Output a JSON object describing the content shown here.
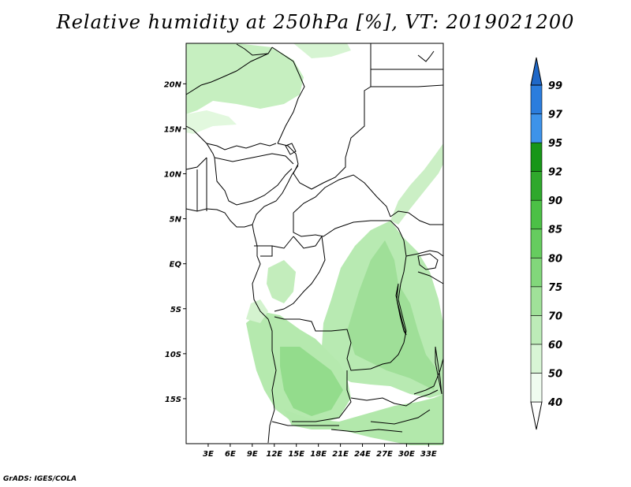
{
  "title": "Relative humidity at 250hPa [%], VT: 2019021200",
  "credit": "GrADS: IGES/COLA",
  "map": {
    "lon_range": [
      0,
      35
    ],
    "lat_range": [
      -20,
      24.5
    ],
    "lat_ticks": [
      {
        "value": 20,
        "label": "20N"
      },
      {
        "value": 15,
        "label": "15N"
      },
      {
        "value": 10,
        "label": "10N"
      },
      {
        "value": 5,
        "label": "5N"
      },
      {
        "value": 0,
        "label": "EQ"
      },
      {
        "value": -5,
        "label": "5S"
      },
      {
        "value": -10,
        "label": "10S"
      },
      {
        "value": -15,
        "label": "15S"
      }
    ],
    "lon_ticks": [
      {
        "value": 3,
        "label": "3E"
      },
      {
        "value": 6,
        "label": "6E"
      },
      {
        "value": 9,
        "label": "9E"
      },
      {
        "value": 12,
        "label": "12E"
      },
      {
        "value": 15,
        "label": "15E"
      },
      {
        "value": 18,
        "label": "18E"
      },
      {
        "value": 21,
        "label": "21E"
      },
      {
        "value": 24,
        "label": "24E"
      },
      {
        "value": 27,
        "label": "27E"
      },
      {
        "value": 30,
        "label": "30E"
      },
      {
        "value": 33,
        "label": "33E"
      }
    ]
  },
  "colorbar": {
    "levels": [
      "40",
      "50",
      "60",
      "70",
      "75",
      "80",
      "85",
      "90",
      "92",
      "95",
      "97",
      "99"
    ],
    "colors": [
      "#f0fcf0",
      "#d8f5d5",
      "#bdecb8",
      "#a0e199",
      "#82d77b",
      "#66cc5f",
      "#4cc046",
      "#2fa82c",
      "#179618",
      "#3d93ea",
      "#2b7ddd",
      "#1f68c8"
    ]
  }
}
